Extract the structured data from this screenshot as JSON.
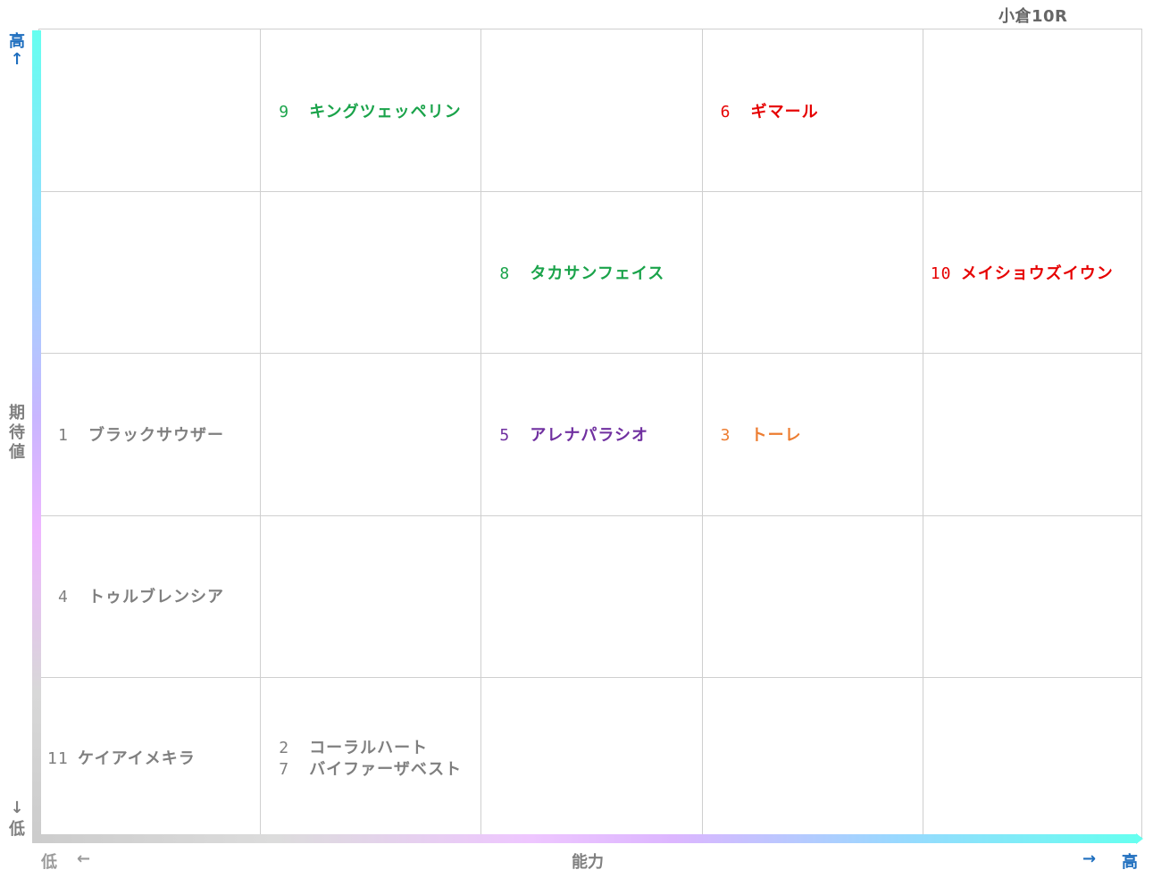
{
  "title": "小倉10R",
  "colors": {
    "green": "#1aa34a",
    "red": "#e60000",
    "purple": "#7030a0",
    "orange": "#ed7d31",
    "gray": "#7f7f7f",
    "axis_blue": "#1f6fbf"
  },
  "axes": {
    "y_label": "期待値",
    "y_high": "高",
    "y_low": "低",
    "y_up_arrow": "↑",
    "y_down_arrow": "↓",
    "x_label": "能力",
    "x_low": "低",
    "x_high": "高",
    "x_left_arrow": "←",
    "x_right_arrow": "→"
  },
  "chart_data": {
    "type": "scatter",
    "title": "小倉10R",
    "xlabel": "能力",
    "ylabel": "期待値",
    "xlim": [
      1,
      5
    ],
    "ylim": [
      1,
      5
    ],
    "grid": true,
    "columns": 5,
    "rows": 5,
    "points": [
      {
        "num": "9",
        "name": "キングツェッペリン",
        "x": 2,
        "y": 5,
        "color": "green"
      },
      {
        "num": "6",
        "name": "ギマール",
        "x": 4,
        "y": 5,
        "color": "red"
      },
      {
        "num": "8",
        "name": "タカサンフェイス",
        "x": 3,
        "y": 4,
        "color": "green"
      },
      {
        "num": "10",
        "name": "メイショウズイウン",
        "x": 5,
        "y": 4,
        "color": "red"
      },
      {
        "num": "1",
        "name": "ブラックサウザー",
        "x": 1,
        "y": 3,
        "color": "gray"
      },
      {
        "num": "5",
        "name": "アレナパラシオ",
        "x": 3,
        "y": 3,
        "color": "purple"
      },
      {
        "num": "3",
        "name": "トーレ",
        "x": 4,
        "y": 3,
        "color": "orange"
      },
      {
        "num": "4",
        "name": "トゥルブレンシア",
        "x": 1,
        "y": 2,
        "color": "gray"
      },
      {
        "num": "11",
        "name": "ケイアイメキラ",
        "x": 1,
        "y": 1,
        "color": "gray"
      },
      {
        "num": "2",
        "name": "コーラルハート",
        "x": 2,
        "y": 1,
        "color": "gray",
        "line": 0
      },
      {
        "num": "7",
        "name": "バイファーザベスト",
        "x": 2,
        "y": 1,
        "color": "gray",
        "line": 1
      }
    ]
  }
}
